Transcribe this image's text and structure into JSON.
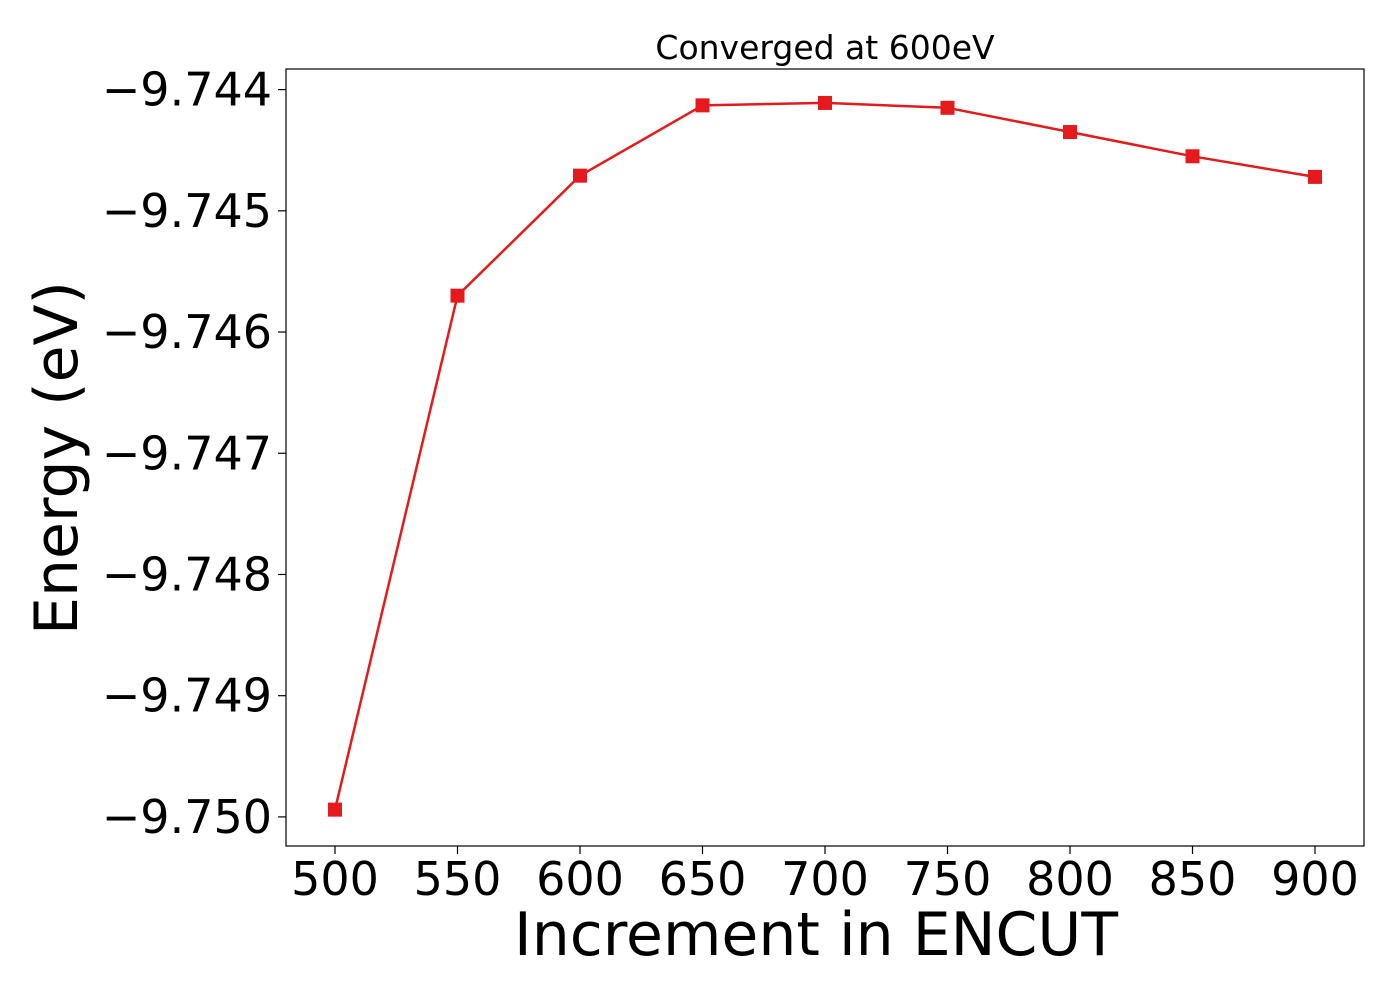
{
  "chart_data": {
    "type": "line",
    "title": "Converged at 600eV",
    "xlabel": "Increment in ENCUT",
    "ylabel": "Energy (eV)",
    "x": [
      500,
      550,
      600,
      650,
      700,
      750,
      800,
      850,
      900
    ],
    "series": [
      {
        "values": [
          -9.74994,
          -9.7457,
          -9.74471,
          -9.74413,
          -9.74411,
          -9.74415,
          -9.74435,
          -9.74455,
          -9.74472
        ],
        "color": "#e41a1c",
        "marker": "square"
      }
    ],
    "xticks": [
      500,
      550,
      600,
      650,
      700,
      750,
      800,
      850,
      900
    ],
    "xtick_labels": [
      "500",
      "550",
      "600",
      "650",
      "700",
      "750",
      "800",
      "850",
      "900"
    ],
    "yticks": [
      -9.744,
      -9.745,
      -9.746,
      -9.747,
      -9.748,
      -9.749,
      -9.75
    ],
    "ytick_labels": [
      "−9.744",
      "−9.745",
      "−9.746",
      "−9.747",
      "−9.748",
      "−9.749",
      "−9.750"
    ],
    "xlim": [
      480,
      920
    ],
    "ylim": [
      -9.75024,
      -9.74383
    ],
    "grid": false,
    "legend": "none"
  }
}
